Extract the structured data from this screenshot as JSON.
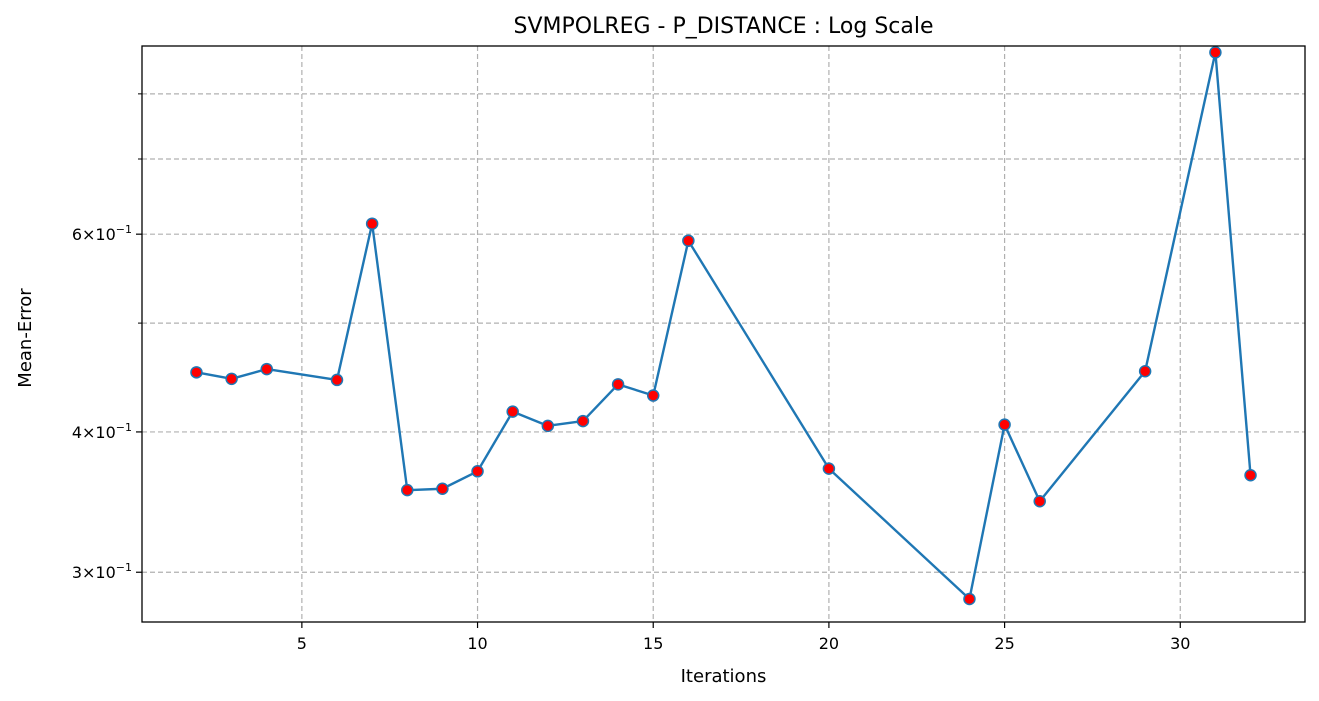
{
  "chart_data": {
    "type": "line",
    "title": "SVMPOLREG - P_DISTANCE : Log Scale",
    "xlabel": "Iterations",
    "ylabel": "Mean-Error",
    "yscale": "log",
    "xlim": [
      0.45,
      33.55
    ],
    "ylim": [
      0.2709,
      0.8825
    ],
    "grid": true,
    "x_ticks": [
      5,
      10,
      15,
      20,
      25,
      30
    ],
    "y_major_ticks": [
      {
        "value": 0.3,
        "label_base": "3",
        "label_mult": "×",
        "label_exp_base": "10",
        "label_exp": "−1"
      },
      {
        "value": 0.4,
        "label_base": "4",
        "label_mult": "×",
        "label_exp_base": "10",
        "label_exp": "−1"
      },
      {
        "value": 0.6,
        "label_base": "6",
        "label_mult": "×",
        "label_exp_base": "10",
        "label_exp": "−1"
      }
    ],
    "y_minor_ticks": [
      0.5,
      0.7,
      0.8
    ],
    "series": [
      {
        "x": [
          2,
          3,
          4,
          6,
          7,
          8,
          9,
          10,
          11,
          12,
          13,
          14,
          15,
          16,
          20,
          24,
          25,
          26,
          29,
          31,
          32
        ],
        "values": [
          0.452,
          0.446,
          0.455,
          0.445,
          0.613,
          0.355,
          0.356,
          0.369,
          0.417,
          0.405,
          0.409,
          0.441,
          0.431,
          0.592,
          0.371,
          0.284,
          0.406,
          0.347,
          0.453,
          0.871,
          0.366
        ],
        "line_color": "#1f77b4",
        "marker_color": "#ff0000"
      }
    ]
  }
}
